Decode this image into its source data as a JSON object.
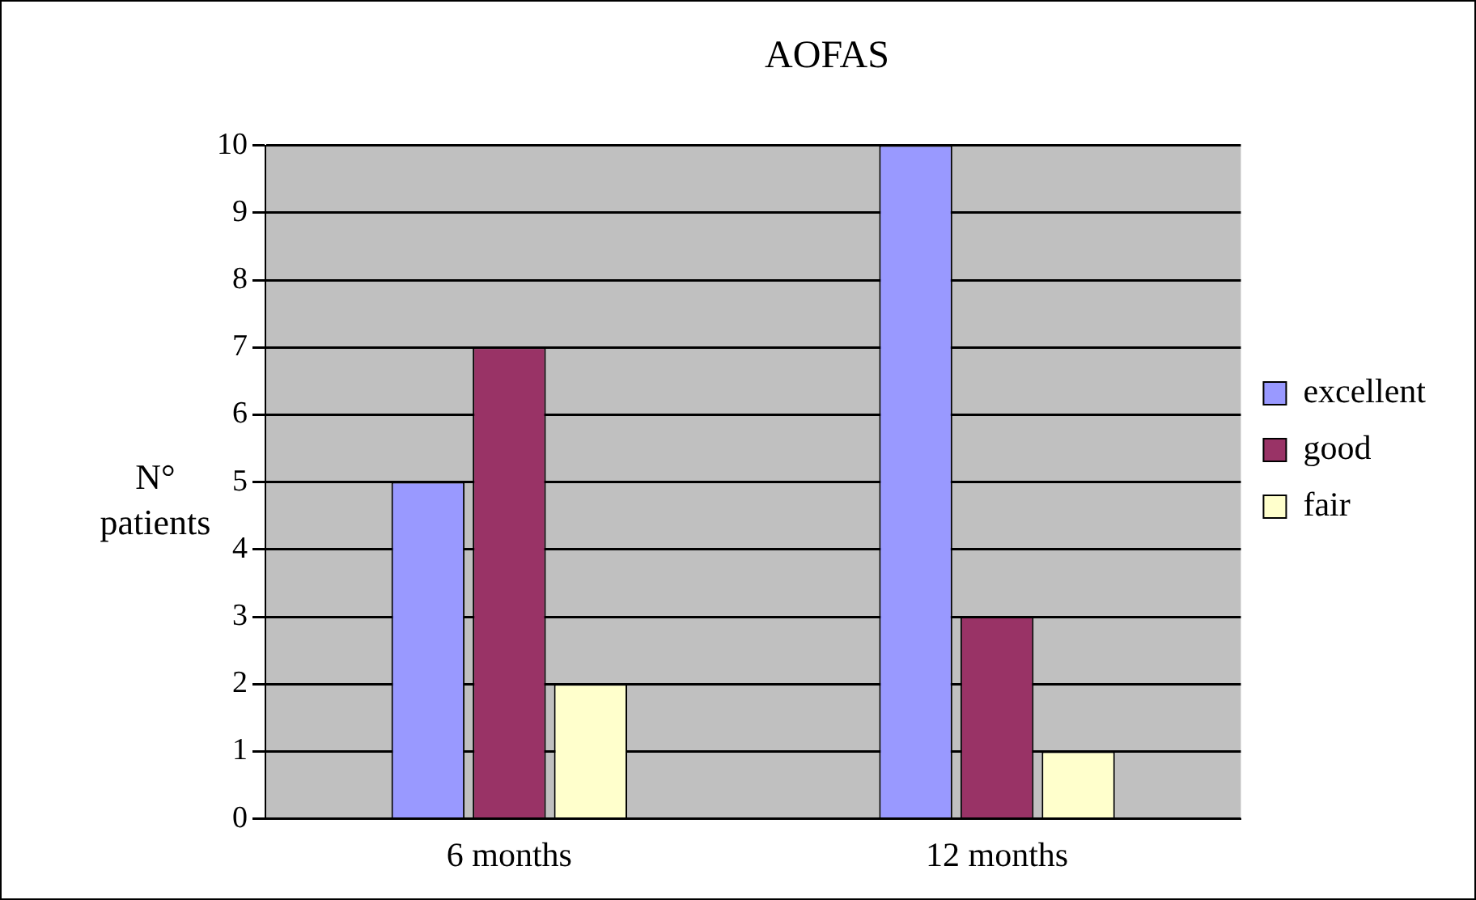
{
  "chart_data": {
    "type": "bar",
    "title": "AOFAS",
    "ylabel": "N° patients",
    "categories": [
      "6 months",
      "12 months"
    ],
    "series": [
      {
        "name": "excellent",
        "color": "#9999ff",
        "values": [
          5,
          10
        ]
      },
      {
        "name": "good",
        "color": "#993366",
        "values": [
          7,
          3
        ]
      },
      {
        "name": "fair",
        "color": "#ffffcc",
        "values": [
          2,
          1
        ]
      }
    ],
    "ylim": [
      0,
      10
    ],
    "yticks": [
      0,
      1,
      2,
      3,
      4,
      5,
      6,
      7,
      8,
      9,
      10
    ],
    "grid": "y",
    "legend": "right"
  }
}
